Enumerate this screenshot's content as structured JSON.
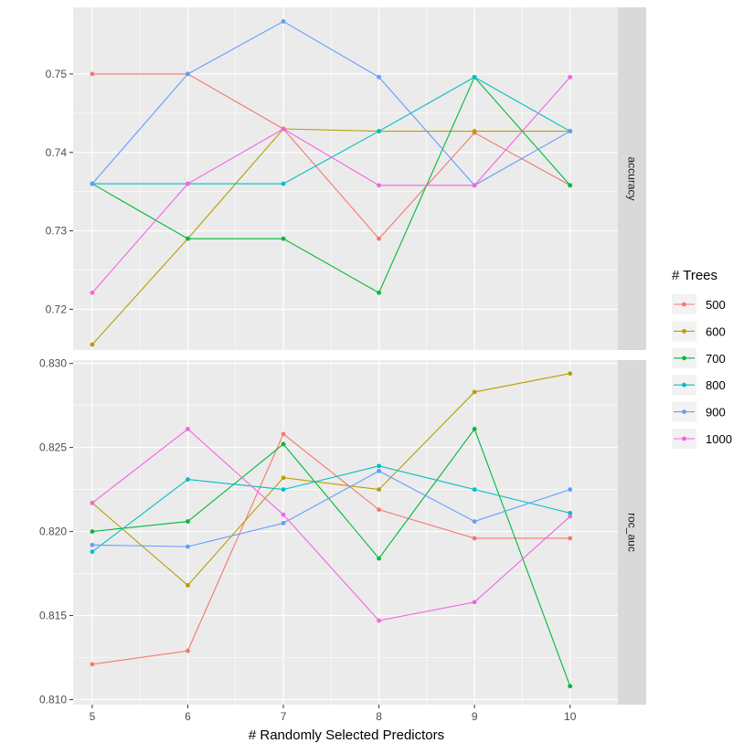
{
  "chart_data": {
    "type": "line",
    "xlabel": "# Randomly Selected Predictors",
    "x": [
      5,
      6,
      7,
      8,
      9,
      10
    ],
    "xlim": [
      4.8,
      10.5
    ],
    "legend_title": "# Trees",
    "legend_position": "right",
    "grid": true,
    "facets": [
      {
        "name": "accuracy",
        "ylim": [
          0.7148,
          0.7585
        ],
        "yticks": [
          0.72,
          0.73,
          0.74,
          0.75
        ],
        "ytick_labels": [
          "0.72",
          "0.73",
          "0.74",
          "0.75"
        ],
        "series": [
          {
            "name": "500",
            "color": "#F8766D",
            "values": [
              0.75,
              0.75,
              0.743,
              0.729,
              0.7425,
              0.7358
            ]
          },
          {
            "name": "600",
            "color": "#B79F00",
            "values": [
              0.7155,
              0.729,
              0.743,
              0.7427,
              0.7427,
              0.7427
            ]
          },
          {
            "name": "700",
            "color": "#00BA38",
            "values": [
              0.736,
              0.729,
              0.729,
              0.7221,
              0.7496,
              0.7358
            ]
          },
          {
            "name": "800",
            "color": "#00BFC4",
            "values": [
              0.736,
              0.736,
              0.736,
              0.7427,
              0.7496,
              0.7427
            ]
          },
          {
            "name": "900",
            "color": "#619CFF",
            "values": [
              0.736,
              0.75,
              0.7567,
              0.7496,
              0.7358,
              0.7427
            ]
          },
          {
            "name": "1000",
            "color": "#F564E3",
            "values": [
              0.7221,
              0.736,
              0.743,
              0.7358,
              0.7358,
              0.7496
            ]
          }
        ]
      },
      {
        "name": "roc_auc",
        "ylim": [
          0.8097,
          0.8302
        ],
        "yticks": [
          0.81,
          0.815,
          0.82,
          0.825,
          0.83
        ],
        "ytick_labels": [
          "0.810",
          "0.815",
          "0.820",
          "0.825",
          "0.830"
        ],
        "series": [
          {
            "name": "500",
            "color": "#F8766D",
            "values": [
              0.8121,
              0.8129,
              0.8258,
              0.8213,
              0.8196,
              0.8196
            ]
          },
          {
            "name": "600",
            "color": "#B79F00",
            "values": [
              0.8217,
              0.8168,
              0.8232,
              0.8225,
              0.8283,
              0.8294
            ]
          },
          {
            "name": "700",
            "color": "#00BA38",
            "values": [
              0.82,
              0.8206,
              0.8252,
              0.8184,
              0.8261,
              0.8108
            ]
          },
          {
            "name": "800",
            "color": "#00BFC4",
            "values": [
              0.8188,
              0.8231,
              0.8225,
              0.8239,
              0.8225,
              0.8211
            ]
          },
          {
            "name": "900",
            "color": "#619CFF",
            "values": [
              0.8192,
              0.8191,
              0.8205,
              0.8236,
              0.8206,
              0.8225
            ]
          },
          {
            "name": "1000",
            "color": "#F564E3",
            "values": [
              0.8217,
              0.8261,
              0.821,
              0.8147,
              0.8158,
              0.8209
            ]
          }
        ]
      }
    ]
  }
}
